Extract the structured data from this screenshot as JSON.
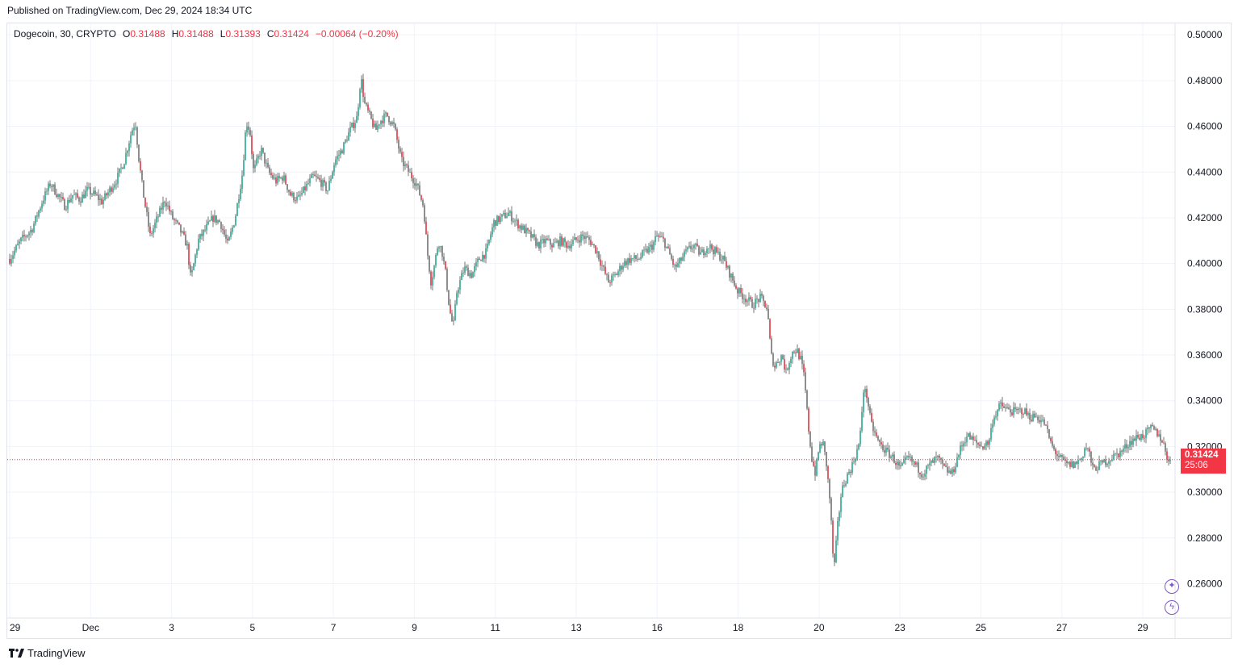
{
  "header": {
    "published": "Published on TradingView.com, Dec 29, 2024 18:34 UTC"
  },
  "legend": {
    "symbol": "Dogecoin, 30, CRYPTO",
    "o_label": "O",
    "o_value": "0.31488",
    "h_label": "H",
    "h_value": "0.31488",
    "l_label": "L",
    "l_value": "0.31393",
    "c_label": "C",
    "c_value": "0.31424",
    "change": "−0.00064 (−0.20%)"
  },
  "price_badge": {
    "price": "0.31424",
    "countdown": "25:06"
  },
  "footer": {
    "brand": "TradingView"
  },
  "icons": [
    "star-burst-icon",
    "lightning-icon"
  ],
  "colors": {
    "up": "#089981",
    "down": "#f23645",
    "grid": "#f0f3fa",
    "last_price_line": "#f23645"
  },
  "chart_data": {
    "type": "candlestick",
    "symbol": "Dogecoin",
    "interval": "30",
    "ylim": [
      0.245,
      0.505
    ],
    "yticks": [
      "0.50000",
      "0.48000",
      "0.46000",
      "0.44000",
      "0.42000",
      "0.40000",
      "0.38000",
      "0.36000",
      "0.34000",
      "0.32000",
      "0.30000",
      "0.28000",
      "0.26000"
    ],
    "xticks": [
      "29",
      "Dec",
      "3",
      "5",
      "7",
      "9",
      "11",
      "13",
      "16",
      "18",
      "20",
      "23",
      "25",
      "27",
      "29"
    ],
    "last_price": 0.31424,
    "grid": true,
    "price_path": [
      [
        0,
        0.402
      ],
      [
        3,
        0.41
      ],
      [
        6,
        0.415
      ],
      [
        9,
        0.428
      ],
      [
        11,
        0.435
      ],
      [
        13,
        0.43
      ],
      [
        15,
        0.425
      ],
      [
        17,
        0.43
      ],
      [
        19,
        0.428
      ],
      [
        21,
        0.432
      ],
      [
        23,
        0.43
      ],
      [
        25,
        0.427
      ],
      [
        27,
        0.432
      ],
      [
        29,
        0.437
      ],
      [
        31,
        0.445
      ],
      [
        33,
        0.458
      ],
      [
        34,
        0.462
      ],
      [
        35,
        0.445
      ],
      [
        36,
        0.432
      ],
      [
        38,
        0.412
      ],
      [
        40,
        0.42
      ],
      [
        42,
        0.428
      ],
      [
        44,
        0.42
      ],
      [
        46,
        0.415
      ],
      [
        48,
        0.408
      ],
      [
        49,
        0.393
      ],
      [
        51,
        0.41
      ],
      [
        53,
        0.415
      ],
      [
        55,
        0.42
      ],
      [
        57,
        0.418
      ],
      [
        59,
        0.408
      ],
      [
        61,
        0.42
      ],
      [
        63,
        0.44
      ],
      [
        64,
        0.462
      ],
      [
        65,
        0.458
      ],
      [
        66,
        0.44
      ],
      [
        68,
        0.45
      ],
      [
        70,
        0.44
      ],
      [
        72,
        0.436
      ],
      [
        74,
        0.438
      ],
      [
        76,
        0.43
      ],
      [
        78,
        0.428
      ],
      [
        80,
        0.433
      ],
      [
        82,
        0.438
      ],
      [
        84,
        0.436
      ],
      [
        86,
        0.432
      ],
      [
        88,
        0.445
      ],
      [
        90,
        0.45
      ],
      [
        92,
        0.458
      ],
      [
        94,
        0.464
      ],
      [
        95,
        0.482
      ],
      [
        96,
        0.47
      ],
      [
        98,
        0.462
      ],
      [
        99,
        0.458
      ],
      [
        100,
        0.462
      ],
      [
        102,
        0.465
      ],
      [
        104,
        0.46
      ],
      [
        106,
        0.445
      ],
      [
        108,
        0.44
      ],
      [
        110,
        0.435
      ],
      [
        112,
        0.425
      ],
      [
        113,
        0.405
      ],
      [
        114,
        0.392
      ],
      [
        115,
        0.4
      ],
      [
        116,
        0.41
      ],
      [
        117,
        0.405
      ],
      [
        118,
        0.395
      ],
      [
        119,
        0.38
      ],
      [
        120,
        0.372
      ],
      [
        121,
        0.388
      ],
      [
        123,
        0.398
      ],
      [
        125,
        0.395
      ],
      [
        127,
        0.402
      ],
      [
        129,
        0.405
      ],
      [
        130,
        0.412
      ],
      [
        131,
        0.418
      ],
      [
        133,
        0.42
      ],
      [
        135,
        0.422
      ],
      [
        137,
        0.418
      ],
      [
        139,
        0.415
      ],
      [
        141,
        0.412
      ],
      [
        143,
        0.408
      ],
      [
        145,
        0.41
      ],
      [
        147,
        0.408
      ],
      [
        149,
        0.41
      ],
      [
        151,
        0.408
      ],
      [
        153,
        0.41
      ],
      [
        155,
        0.412
      ],
      [
        157,
        0.41
      ],
      [
        159,
        0.405
      ],
      [
        160,
        0.4
      ],
      [
        162,
        0.392
      ],
      [
        164,
        0.395
      ],
      [
        166,
        0.4
      ],
      [
        168,
        0.402
      ],
      [
        170,
        0.402
      ],
      [
        172,
        0.405
      ],
      [
        174,
        0.408
      ],
      [
        175,
        0.412
      ],
      [
        177,
        0.41
      ],
      [
        179,
        0.402
      ],
      [
        180,
        0.398
      ],
      [
        181,
        0.4
      ],
      [
        183,
        0.405
      ],
      [
        185,
        0.408
      ],
      [
        187,
        0.404
      ],
      [
        189,
        0.408
      ],
      [
        191,
        0.405
      ],
      [
        193,
        0.402
      ],
      [
        195,
        0.395
      ],
      [
        197,
        0.388
      ],
      [
        199,
        0.385
      ],
      [
        201,
        0.382
      ],
      [
        203,
        0.385
      ],
      [
        204,
        0.383
      ],
      [
        205,
        0.38
      ],
      [
        206,
        0.36
      ],
      [
        207,
        0.355
      ],
      [
        208,
        0.358
      ],
      [
        209,
        0.36
      ],
      [
        210,
        0.352
      ],
      [
        211,
        0.358
      ],
      [
        212,
        0.362
      ],
      [
        213,
        0.362
      ],
      [
        214,
        0.358
      ],
      [
        215,
        0.35
      ],
      [
        216,
        0.33
      ],
      [
        217,
        0.315
      ],
      [
        218,
        0.308
      ],
      [
        219,
        0.32
      ],
      [
        220,
        0.322
      ],
      [
        221,
        0.312
      ],
      [
        222,
        0.295
      ],
      [
        223,
        0.265
      ],
      [
        224,
        0.285
      ],
      [
        225,
        0.3
      ],
      [
        226,
        0.305
      ],
      [
        228,
        0.312
      ],
      [
        230,
        0.322
      ],
      [
        231,
        0.345
      ],
      [
        232,
        0.342
      ],
      [
        233,
        0.33
      ],
      [
        235,
        0.322
      ],
      [
        237,
        0.318
      ],
      [
        239,
        0.315
      ],
      [
        241,
        0.31
      ],
      [
        243,
        0.315
      ],
      [
        245,
        0.312
      ],
      [
        247,
        0.308
      ],
      [
        249,
        0.312
      ],
      [
        251,
        0.315
      ],
      [
        253,
        0.31
      ],
      [
        255,
        0.308
      ],
      [
        257,
        0.318
      ],
      [
        259,
        0.325
      ],
      [
        261,
        0.322
      ],
      [
        263,
        0.32
      ],
      [
        265,
        0.322
      ],
      [
        266,
        0.332
      ],
      [
        268,
        0.338
      ],
      [
        270,
        0.336
      ],
      [
        272,
        0.335
      ],
      [
        274,
        0.336
      ],
      [
        276,
        0.333
      ],
      [
        278,
        0.333
      ],
      [
        280,
        0.33
      ],
      [
        282,
        0.32
      ],
      [
        284,
        0.315
      ],
      [
        286,
        0.312
      ],
      [
        288,
        0.312
      ],
      [
        290,
        0.315
      ],
      [
        291,
        0.32
      ],
      [
        292,
        0.318
      ],
      [
        293,
        0.31
      ],
      [
        295,
        0.312
      ],
      [
        297,
        0.314
      ],
      [
        299,
        0.316
      ],
      [
        301,
        0.318
      ],
      [
        303,
        0.322
      ],
      [
        305,
        0.324
      ],
      [
        307,
        0.325
      ],
      [
        309,
        0.328
      ],
      [
        311,
        0.325
      ],
      [
        312,
        0.322
      ],
      [
        313,
        0.316
      ],
      [
        314,
        0.314
      ]
    ]
  }
}
